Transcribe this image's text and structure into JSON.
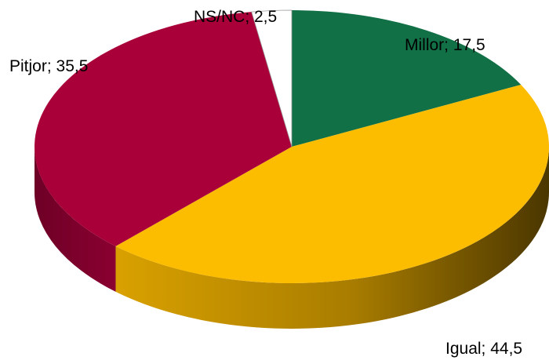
{
  "chart_data": {
    "type": "pie",
    "style": "3d",
    "start_angle_deg": 0,
    "direction": "clockwise",
    "slices": [
      {
        "label": "Millor",
        "value": 17.5,
        "text": "Millor; 17,5",
        "color": "#127046"
      },
      {
        "label": "Igual",
        "value": 44.5,
        "text": "Igual; 44,5",
        "color": "#FCBC00"
      },
      {
        "label": "Pitjor",
        "value": 35.5,
        "text": "Pitjor; 35,5",
        "color": "#A9003A"
      },
      {
        "label": "NS/NC",
        "value": 2.5,
        "text": "NS/NC; 2,5",
        "color": "#FFFFFF"
      }
    ]
  }
}
